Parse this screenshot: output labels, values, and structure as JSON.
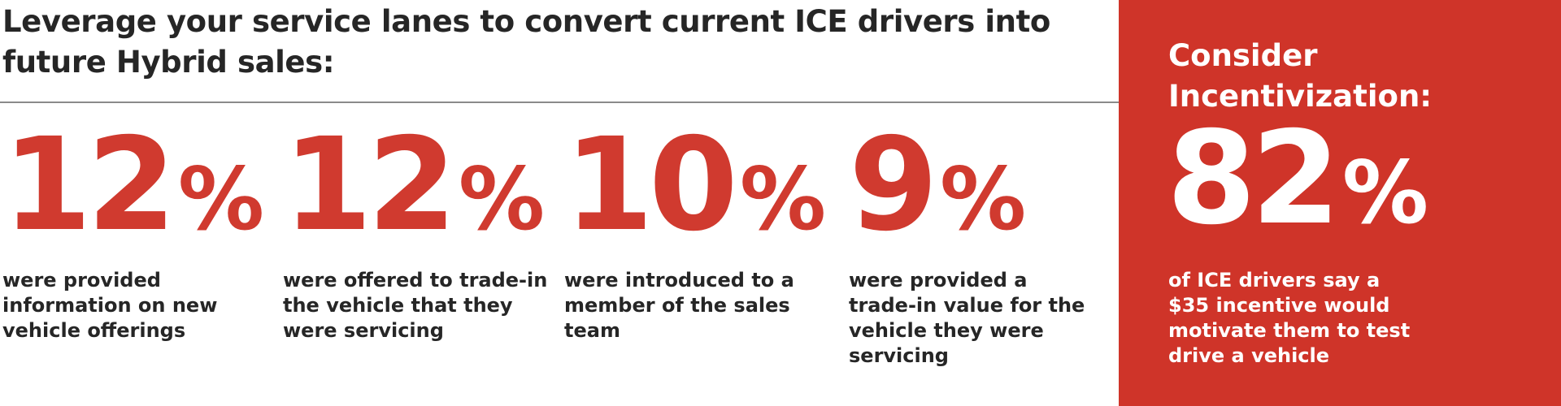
{
  "headline": "Leverage your service lanes to convert current ICE drivers into future Hybrid sales:",
  "stats": [
    {
      "number": "12",
      "percent_sign": "%",
      "description": "were provided information on new vehicle offerings"
    },
    {
      "number": "12",
      "percent_sign": "%",
      "description": "were offered to trade-in the vehicle that they were servicing"
    },
    {
      "number": "10",
      "percent_sign": "%",
      "description": "were introduced to a member of the sales team"
    },
    {
      "number": "9",
      "percent_sign": "%",
      "description": "were provided a trade-in value for the vehicle they were servicing"
    }
  ],
  "panel": {
    "title": "Consider Incentivization:",
    "number": "82",
    "percent_sign": "%",
    "description": "of ICE drivers say a $35 incentive would motivate them to test drive a vehicle"
  },
  "colors": {
    "accent_red": "#d03a2f",
    "panel_red": "#cf3429",
    "text_dark": "#262626",
    "rule_gray": "#8a8a8a"
  }
}
